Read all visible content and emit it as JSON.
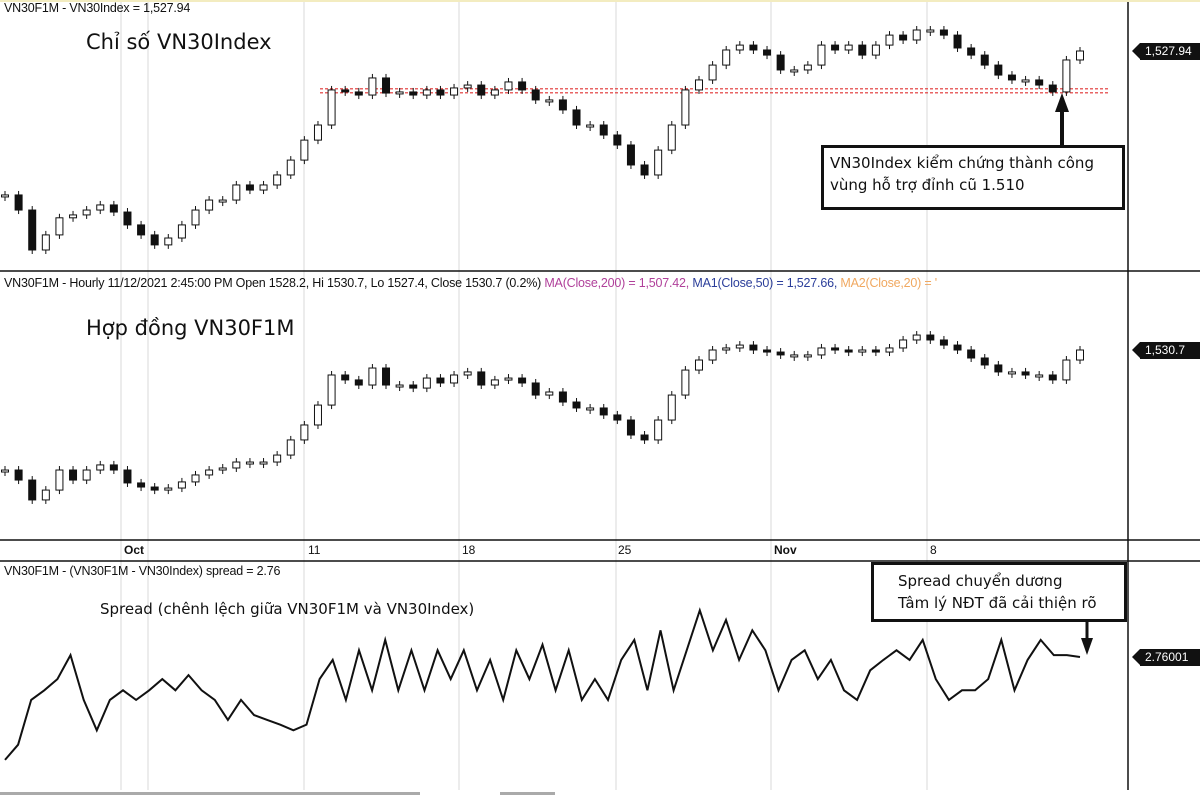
{
  "panels": {
    "index": {
      "header": "VN30F1M - VN30Index = 1,527.94",
      "title": "Chỉ số VN30Index",
      "last_label": "1,527.94",
      "annotation": [
        "VN30Index kiểm chứng thành công",
        "vùng hỗ trợ đỉnh cũ 1.510"
      ]
    },
    "futures": {
      "header_main": "VN30F1M - Hourly 11/12/2021 2:45:00 PM Open 1528.2, Hi 1530.7, Lo 1527.4, Close 1530.7 (0.2%) ",
      "ma200": "MA(Close,200) = 1,507.42, ",
      "ma50": "MA1(Close,50) = 1,527.66, ",
      "ma20": "MA2(Close,20) = '",
      "title": "Hợp đồng VN30F1M",
      "last_label": "1,530.7"
    },
    "spread": {
      "header": "VN30F1M - (VN30F1M - VN30Index) spread = 2.76",
      "title": "Spread (chênh lệch giữa VN30F1M và VN30Index)",
      "last_label": "2.76001",
      "annotation": [
        "Spread chuyển dương",
        "Tâm lý NĐT đã cải thiện rõ"
      ]
    }
  },
  "x_axis": {
    "ticks": [
      "Oct",
      "11",
      "18",
      "25",
      "Nov",
      "8"
    ]
  },
  "colors": {
    "ma200": "#b0409a",
    "ma50": "#2b3e9a",
    "ma20": "#f0a860",
    "support_line": "#e03030",
    "candle": "#111111"
  },
  "chart_data": [
    {
      "type": "candlestick",
      "name": "VN30Index",
      "support_level": 1510,
      "close": [
        1463.1,
        1456.3,
        1438.3,
        1445.1,
        1452.8,
        1454.1,
        1456.3,
        1458.6,
        1455.4,
        1449.6,
        1445.1,
        1440.6,
        1443.7,
        1449.6,
        1456.3,
        1460.8,
        1460.8,
        1467.6,
        1465.3,
        1467.6,
        1472.1,
        1478.8,
        1487.8,
        1494.6,
        1510.4,
        1509.5,
        1508.1,
        1515.8,
        1509.0,
        1509.5,
        1508.1,
        1510.4,
        1508.1,
        1511.3,
        1512.6,
        1508.1,
        1510.4,
        1514.0,
        1510.4,
        1505.9,
        1505.9,
        1501.4,
        1494.6,
        1494.6,
        1490.1,
        1485.6,
        1476.6,
        1472.1,
        1483.3,
        1494.6,
        1510.4,
        1514.9,
        1521.6,
        1528.4,
        1530.6,
        1528.4,
        1526.1,
        1519.4,
        1519.4,
        1521.6,
        1530.6,
        1528.4,
        1530.6,
        1526.1,
        1530.6,
        1535.1,
        1532.9,
        1537.4,
        1537.4,
        1535.1,
        1529.3,
        1526.1,
        1521.6,
        1517.1,
        1514.9,
        1514.9,
        1512.6,
        1509.5,
        1523.9,
        1527.94
      ]
    },
    {
      "type": "candlestick",
      "name": "VN30F1M",
      "close": [
        1460.1,
        1454.2,
        1442.5,
        1448.3,
        1460.1,
        1454.2,
        1460.1,
        1463.1,
        1460.1,
        1452.5,
        1450.1,
        1448.3,
        1449.5,
        1453.1,
        1457.2,
        1460.1,
        1461.3,
        1464.8,
        1464.8,
        1464.8,
        1468.9,
        1477.8,
        1486.6,
        1498.3,
        1516.0,
        1513.1,
        1510.1,
        1520.1,
        1510.1,
        1510.1,
        1508.3,
        1514.2,
        1511.3,
        1516.0,
        1517.8,
        1510.1,
        1513.1,
        1514.2,
        1511.3,
        1504.2,
        1506.0,
        1500.1,
        1496.6,
        1496.6,
        1492.5,
        1489.5,
        1480.7,
        1477.8,
        1489.5,
        1504.2,
        1518.9,
        1524.8,
        1530.7,
        1531.9,
        1533.6,
        1530.7,
        1529.5,
        1527.8,
        1527.8,
        1527.8,
        1531.9,
        1530.7,
        1529.5,
        1530.7,
        1529.5,
        1531.9,
        1536.6,
        1539.5,
        1536.6,
        1533.6,
        1530.7,
        1526.0,
        1521.9,
        1517.8,
        1517.8,
        1516.0,
        1516.0,
        1513.1,
        1524.8,
        1530.7
      ]
    },
    {
      "type": "line",
      "name": "spread",
      "values": [
        -10.1,
        -8.2,
        -2.6,
        -1.4,
        0.0,
        3.0,
        -2.6,
        -6.4,
        -2.6,
        -1.4,
        -2.6,
        -1.4,
        0.0,
        -1.4,
        0.5,
        -1.4,
        -2.6,
        -5.1,
        -2.6,
        -4.5,
        -5.1,
        -5.7,
        -6.4,
        -5.7,
        0.0,
        2.4,
        -2.6,
        3.6,
        -1.4,
        4.9,
        -1.4,
        3.6,
        -1.4,
        3.6,
        0.0,
        3.6,
        -1.4,
        2.4,
        -2.6,
        3.6,
        0.0,
        4.3,
        -1.4,
        3.6,
        -2.6,
        0.0,
        -2.6,
        2.4,
        4.9,
        -1.4,
        6.1,
        -1.4,
        3.6,
        8.6,
        3.6,
        7.4,
        2.4,
        6.1,
        3.6,
        -1.4,
        2.4,
        3.6,
        0.0,
        2.4,
        -1.4,
        -2.6,
        1.1,
        2.4,
        3.6,
        2.4,
        4.9,
        0.0,
        -2.6,
        -1.4,
        -1.4,
        0.0,
        4.9,
        -1.4,
        2.4,
        4.9,
        3.0,
        3.0,
        2.76
      ]
    }
  ]
}
